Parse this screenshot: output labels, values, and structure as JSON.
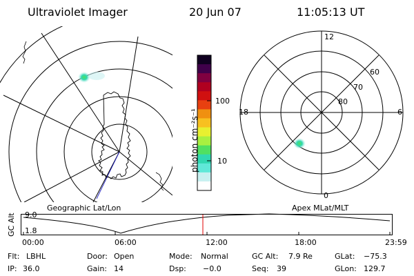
{
  "header": {
    "instrument": "Ultraviolet Imager",
    "date": "20 Jun 07",
    "time": "11:05:13 UT"
  },
  "geo_panel": {
    "label": "Geographic Lat/Lon"
  },
  "colorbar": {
    "unit_label": "photon cm⁻²s⁻¹",
    "ticks": [
      "100",
      "10"
    ],
    "colors": [
      "#ffffff",
      "#c8f0f0",
      "#60e8d8",
      "#30d8b0",
      "#50e060",
      "#a8f040",
      "#e8f030",
      "#f8c020",
      "#f09010",
      "#e84010",
      "#d01010",
      "#b00020",
      "#800040",
      "#40004a",
      "#100020"
    ]
  },
  "polar_panel": {
    "label": "Apex MLat/MLT",
    "mlt_labels": {
      "top": "12",
      "right": "6",
      "bottom": "0",
      "left": "18"
    },
    "lat_labels": [
      "60",
      "70",
      "80"
    ]
  },
  "altitude_plot": {
    "ylabel": "GC Alt",
    "yticks": [
      "9.0",
      "1.8"
    ],
    "xticks": [
      "00:00",
      "06:00",
      "12:00",
      "18:00",
      "23:59"
    ]
  },
  "info": {
    "row1": {
      "filt_label": "Flt:",
      "filt_value": "LBHL",
      "door_label": "Door:",
      "door_value": "Open",
      "mode_label": "Mode:",
      "mode_value": "Normal",
      "alt_label": "GC Alt:",
      "alt_value": "7.9 Re",
      "glat_label": "GLat:",
      "glat_value": "−75.3"
    },
    "row2": {
      "ip_label": "IP:",
      "ip_value": "36.0",
      "gain_label": "Gain:",
      "gain_value": "14",
      "dsp_label": "Dsp:",
      "dsp_value": "−0.0",
      "seq_label": "Seq:",
      "seq_value": "39",
      "glon_label": "GLon:",
      "glon_value": "129.7"
    }
  }
}
